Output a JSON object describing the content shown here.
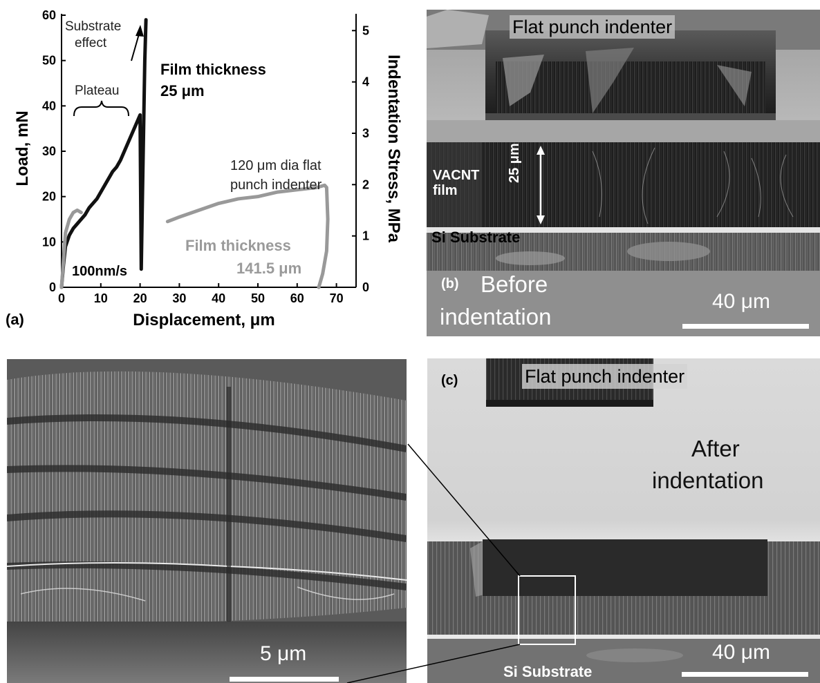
{
  "figure": {
    "panel_a": {
      "label": "(a)",
      "speed_label": "100nm/s",
      "annotations": {
        "substrate_effect_line1": "Substrate",
        "substrate_effect_line2": "effect",
        "plateau": "Plateau",
        "film25_line1": "Film thickness",
        "film25_line2": "25 μm",
        "indenter_line1": "120 μm dia flat",
        "indenter_line2": "punch indenter",
        "film141_line1": "Film thickness",
        "film141_line2": "141.5 μm"
      }
    },
    "panel_b": {
      "label": "(b)",
      "indenter_label": "Flat punch indenter",
      "vacnt_label": "VACNT film",
      "thickness_label": "25 μm",
      "substrate_label": "Si Substrate",
      "caption_line1": "Before",
      "caption_line2": "indentation",
      "scale_label": "40 μm"
    },
    "panel_c": {
      "label": "(c)",
      "indenter_label": "Flat punch indenter",
      "caption_line1": "After",
      "caption_line2": "indentation",
      "substrate_label": "Si Substrate",
      "scale_label": "40 μm"
    },
    "panel_d": {
      "scale_label": "5 μm"
    }
  },
  "chart_data": {
    "type": "line",
    "xlabel": "Displacement, μm",
    "ylabel": "Load, mN",
    "y2label": "Indentation Stress, MPa",
    "xlim": [
      0,
      75
    ],
    "ylim": [
      0,
      60
    ],
    "y2lim": [
      0,
      5.3
    ],
    "xticks": [
      0,
      10,
      20,
      30,
      40,
      50,
      60,
      70
    ],
    "yticks": [
      0,
      10,
      20,
      30,
      40,
      50,
      60
    ],
    "y2ticks": [
      0,
      1,
      2,
      3,
      4,
      5
    ],
    "series": [
      {
        "color": "#111111",
        "x": [
          0,
          0.5,
          1,
          2,
          3,
          4,
          5,
          6,
          7,
          8,
          9,
          10,
          11,
          12,
          13,
          14,
          15,
          16,
          17,
          18,
          19,
          20,
          20.3,
          20.6,
          20.9,
          21.2,
          21.5
        ],
        "y": [
          0,
          5,
          9,
          11.5,
          13,
          14,
          15,
          16,
          17.5,
          18.5,
          19.5,
          21,
          22.5,
          24,
          25.5,
          26.5,
          28,
          30,
          32,
          34,
          36,
          38,
          4,
          20,
          35,
          50,
          59
        ]
      },
      {
        "color": "#999999",
        "x": [
          0,
          0.5,
          1,
          2,
          3,
          4,
          5
        ],
        "y": [
          0,
          6,
          12,
          15,
          16.5,
          17,
          16.5
        ]
      },
      {
        "color": "#999999",
        "x": [
          27,
          30,
          35,
          40,
          45,
          50,
          55,
          60,
          65,
          67,
          67.5,
          67.8,
          67.5,
          66.5,
          65.5
        ],
        "y": [
          14.5,
          15.5,
          17,
          18.5,
          19.5,
          20,
          21,
          21.5,
          22,
          22.5,
          22,
          15,
          8,
          3,
          0
        ]
      }
    ]
  }
}
